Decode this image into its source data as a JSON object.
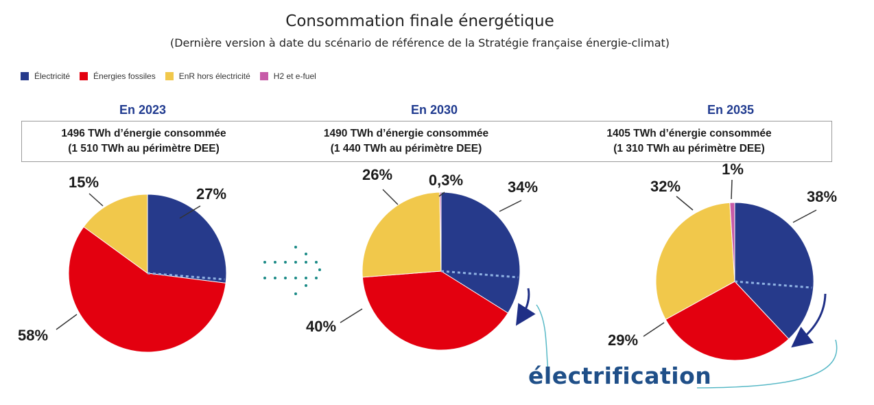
{
  "header": {
    "title": "Consommation finale énergétique",
    "subtitle": "(Dernière version à date du scénario de référence de la Stratégie française énergie-climat)"
  },
  "legend": [
    {
      "label": "Électricité",
      "color": "#263a8b"
    },
    {
      "label": "Énergies fossiles",
      "color": "#e3000f"
    },
    {
      "label": "EnR hors électricité",
      "color": "#f1c84b"
    },
    {
      "label": "H2 et e-fuel",
      "color": "#c75ba8"
    }
  ],
  "panels": [
    {
      "period": "En 2023",
      "line1": "1496 TWh d’énergie consommée",
      "line2": "(1 510 TWh au périmètre DEE)"
    },
    {
      "period": "En 2030",
      "line1": "1490 TWh d’énergie consommée",
      "line2": "(1 440 TWh au périmètre DEE)"
    },
    {
      "period": "En 2035",
      "line1": "1405 TWh d’énergie consommée",
      "line2": "(1 310 TWh au périmètre DEE)"
    }
  ],
  "annotation": {
    "electrification": "électrification"
  },
  "chart_data": [
    {
      "type": "pie",
      "title": "En 2023",
      "categories": [
        "Électricité",
        "Énergies fossiles",
        "EnR hors électricité"
      ],
      "values": [
        27,
        58,
        15
      ],
      "labels": [
        "27%",
        "58%",
        "15%"
      ]
    },
    {
      "type": "pie",
      "title": "En 2030",
      "categories": [
        "Électricité",
        "Énergies fossiles",
        "EnR hors électricité",
        "H2 et e-fuel"
      ],
      "values": [
        34,
        40,
        26,
        0.3
      ],
      "labels": [
        "34%",
        "40%",
        "26%",
        "0,3%"
      ]
    },
    {
      "type": "pie",
      "title": "En 2035",
      "categories": [
        "Électricité",
        "Énergies fossiles",
        "EnR hors électricité",
        "H2 et e-fuel"
      ],
      "values": [
        38,
        29,
        32,
        1
      ],
      "labels": [
        "38%",
        "29%",
        "32%",
        "1%"
      ]
    }
  ]
}
